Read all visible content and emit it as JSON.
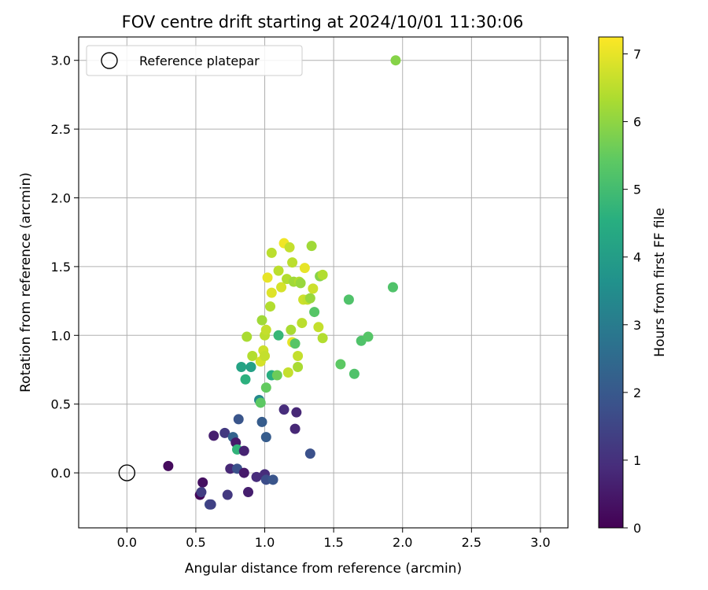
{
  "chart_data": {
    "type": "scatter",
    "title": "FOV centre drift starting at 2024/10/01 11:30:06",
    "xlabel": "Angular distance from reference (arcmin)",
    "ylabel": "Rotation from reference (arcmin)",
    "xlim": [
      -0.35,
      3.2
    ],
    "ylim": [
      -0.4,
      3.17
    ],
    "xticks": [
      0.0,
      0.5,
      1.0,
      1.5,
      2.0,
      2.5,
      3.0
    ],
    "xtick_labels": [
      "0.0",
      "0.5",
      "1.0",
      "1.5",
      "2.0",
      "2.5",
      "3.0"
    ],
    "yticks": [
      0.0,
      0.5,
      1.0,
      1.5,
      2.0,
      2.5,
      3.0
    ],
    "ytick_labels": [
      "0.0",
      "0.5",
      "1.0",
      "1.5",
      "2.0",
      "2.5",
      "3.0"
    ],
    "grid": true,
    "legend": {
      "position": "top-left",
      "entries": [
        "Reference platepar"
      ]
    },
    "reference_point": {
      "x": 0.0,
      "y": 0.0
    },
    "colorbar": {
      "label": "Hours from first FF file",
      "range": [
        0,
        7.25
      ],
      "ticks": [
        0,
        1,
        2,
        3,
        4,
        5,
        6,
        7
      ],
      "tick_labels": [
        "0",
        "1",
        "2",
        "3",
        "4",
        "5",
        "6",
        "7"
      ],
      "colormap": "viridis"
    },
    "points": [
      {
        "x": 0.3,
        "y": 0.05,
        "t": 0.2
      },
      {
        "x": 0.53,
        "y": -0.16,
        "t": 0.1
      },
      {
        "x": 0.55,
        "y": -0.07,
        "t": 0.3
      },
      {
        "x": 0.54,
        "y": -0.14,
        "t": 1.3
      },
      {
        "x": 0.6,
        "y": -0.23,
        "t": 1.6
      },
      {
        "x": 0.61,
        "y": -0.23,
        "t": 1.4
      },
      {
        "x": 0.63,
        "y": 0.27,
        "t": 0.6
      },
      {
        "x": 0.71,
        "y": 0.29,
        "t": 1.2
      },
      {
        "x": 0.73,
        "y": -0.16,
        "t": 1.2
      },
      {
        "x": 0.75,
        "y": 0.03,
        "t": 0.8
      },
      {
        "x": 0.77,
        "y": 0.26,
        "t": 2.3
      },
      {
        "x": 0.79,
        "y": 0.22,
        "t": 0.5
      },
      {
        "x": 0.8,
        "y": 0.17,
        "t": 4.7
      },
      {
        "x": 0.8,
        "y": 0.03,
        "t": 1.8
      },
      {
        "x": 0.81,
        "y": 0.39,
        "t": 1.9
      },
      {
        "x": 0.83,
        "y": 0.77,
        "t": 4.2
      },
      {
        "x": 0.85,
        "y": 0.16,
        "t": 0.7
      },
      {
        "x": 0.85,
        "y": 0.0,
        "t": 0.5
      },
      {
        "x": 0.86,
        "y": 0.68,
        "t": 4.6
      },
      {
        "x": 0.87,
        "y": 0.99,
        "t": 6.3
      },
      {
        "x": 0.88,
        "y": -0.14,
        "t": 0.6
      },
      {
        "x": 0.9,
        "y": 0.77,
        "t": 4.1
      },
      {
        "x": 0.91,
        "y": 0.85,
        "t": 6.4
      },
      {
        "x": 0.94,
        "y": -0.03,
        "t": 0.9
      },
      {
        "x": 0.96,
        "y": 0.53,
        "t": 3.4
      },
      {
        "x": 0.97,
        "y": 0.51,
        "t": 5.4
      },
      {
        "x": 0.97,
        "y": 0.81,
        "t": 6.8
      },
      {
        "x": 0.98,
        "y": 0.37,
        "t": 2.1
      },
      {
        "x": 0.98,
        "y": 1.11,
        "t": 6.2
      },
      {
        "x": 0.99,
        "y": 0.89,
        "t": 6.7
      },
      {
        "x": 1.0,
        "y": 1.0,
        "t": 6.5
      },
      {
        "x": 1.0,
        "y": -0.01,
        "t": 0.9
      },
      {
        "x": 1.0,
        "y": 0.85,
        "t": 6.6
      },
      {
        "x": 1.01,
        "y": 0.26,
        "t": 2.1
      },
      {
        "x": 1.01,
        "y": 1.04,
        "t": 6.6
      },
      {
        "x": 1.01,
        "y": 0.62,
        "t": 5.5
      },
      {
        "x": 1.02,
        "y": 1.42,
        "t": 7.0
      },
      {
        "x": 1.01,
        "y": -0.05,
        "t": 1.7
      },
      {
        "x": 1.04,
        "y": 1.21,
        "t": 6.4
      },
      {
        "x": 1.05,
        "y": 0.71,
        "t": 4.5
      },
      {
        "x": 1.05,
        "y": 1.31,
        "t": 6.9
      },
      {
        "x": 1.05,
        "y": 1.6,
        "t": 6.5
      },
      {
        "x": 1.06,
        "y": -0.05,
        "t": 1.9
      },
      {
        "x": 1.09,
        "y": 0.71,
        "t": 5.6
      },
      {
        "x": 1.1,
        "y": 1.47,
        "t": 6.5
      },
      {
        "x": 1.1,
        "y": 1.0,
        "t": 4.8
      },
      {
        "x": 1.12,
        "y": 1.35,
        "t": 6.8
      },
      {
        "x": 1.14,
        "y": 1.67,
        "t": 7.1
      },
      {
        "x": 1.14,
        "y": 0.46,
        "t": 0.9
      },
      {
        "x": 1.16,
        "y": 1.41,
        "t": 6.4
      },
      {
        "x": 1.17,
        "y": 0.73,
        "t": 6.6
      },
      {
        "x": 1.18,
        "y": 1.64,
        "t": 6.6
      },
      {
        "x": 1.19,
        "y": 1.04,
        "t": 6.3
      },
      {
        "x": 1.2,
        "y": 0.95,
        "t": 7.0
      },
      {
        "x": 1.2,
        "y": 1.53,
        "t": 6.5
      },
      {
        "x": 1.21,
        "y": 1.39,
        "t": 6.2
      },
      {
        "x": 1.22,
        "y": 0.32,
        "t": 0.8
      },
      {
        "x": 1.22,
        "y": 0.94,
        "t": 5.3
      },
      {
        "x": 1.23,
        "y": 0.44,
        "t": 0.8
      },
      {
        "x": 1.24,
        "y": 0.77,
        "t": 6.3
      },
      {
        "x": 1.24,
        "y": 0.85,
        "t": 6.6
      },
      {
        "x": 1.25,
        "y": 1.39,
        "t": 6.4
      },
      {
        "x": 1.26,
        "y": 1.38,
        "t": 6.1
      },
      {
        "x": 1.27,
        "y": 1.09,
        "t": 6.5
      },
      {
        "x": 1.28,
        "y": 1.26,
        "t": 6.7
      },
      {
        "x": 1.29,
        "y": 1.49,
        "t": 7.0
      },
      {
        "x": 1.31,
        "y": 1.26,
        "t": 6.6
      },
      {
        "x": 1.33,
        "y": 0.14,
        "t": 1.8
      },
      {
        "x": 1.33,
        "y": 1.27,
        "t": 6.1
      },
      {
        "x": 1.34,
        "y": 1.65,
        "t": 6.2
      },
      {
        "x": 1.35,
        "y": 1.34,
        "t": 6.7
      },
      {
        "x": 1.36,
        "y": 1.17,
        "t": 5.3
      },
      {
        "x": 1.39,
        "y": 1.06,
        "t": 6.6
      },
      {
        "x": 1.4,
        "y": 1.43,
        "t": 5.9
      },
      {
        "x": 1.42,
        "y": 1.44,
        "t": 6.4
      },
      {
        "x": 1.42,
        "y": 0.98,
        "t": 6.4
      },
      {
        "x": 1.55,
        "y": 0.79,
        "t": 5.4
      },
      {
        "x": 1.61,
        "y": 1.26,
        "t": 5.2
      },
      {
        "x": 1.65,
        "y": 0.72,
        "t": 5.2
      },
      {
        "x": 1.7,
        "y": 0.96,
        "t": 5.2
      },
      {
        "x": 1.75,
        "y": 0.99,
        "t": 5.3
      },
      {
        "x": 1.93,
        "y": 1.35,
        "t": 5.2
      },
      {
        "x": 1.95,
        "y": 3.0,
        "t": 5.9
      }
    ]
  }
}
